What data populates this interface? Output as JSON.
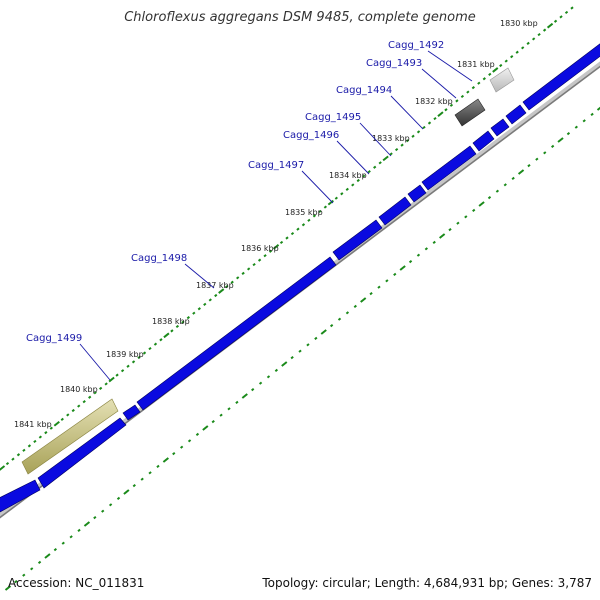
{
  "title": "Chloroflexus aggregans DSM 9485, complete genome",
  "accession": "Accession: NC_011831",
  "summary": "Topology: circular; Length: 4,684,931 bp; Genes: 3,787",
  "colors": {
    "cds": "#0a0ae0",
    "backbone": "#8a8a8a",
    "tick_green": "#1a8a1a",
    "gene_label": "#1a1aa8",
    "feature_olive": "#c9c48a",
    "feature_dark": "#555555",
    "feature_light": "#d5d5d5"
  },
  "kbp_labels": [
    "1830 kbp",
    "1831 kbp",
    "1832 kbp",
    "1833 kbp",
    "1834 kbp",
    "1835 kbp",
    "1836 kbp",
    "1837 kbp",
    "1838 kbp",
    "1839 kbp",
    "1840 kbp",
    "1841 kbp"
  ],
  "gene_labels": [
    "Cagg_1492",
    "Cagg_1493",
    "Cagg_1494",
    "Cagg_1495",
    "Cagg_1496",
    "Cagg_1497",
    "Cagg_1498",
    "Cagg_1499"
  ]
}
